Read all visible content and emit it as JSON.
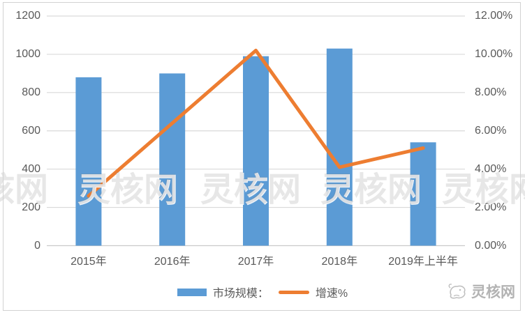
{
  "chart_data": {
    "type": "bar",
    "subtype": "combo-bar-line-dual-axis",
    "title": "",
    "categories": [
      "2015年",
      "2016年",
      "2017年",
      "2018年",
      "2019年上半年"
    ],
    "series": [
      {
        "name": "市场规模：",
        "type": "bar",
        "axis": "left",
        "color": "#5B9BD5",
        "values": [
          880,
          900,
          990,
          1030,
          540
        ]
      },
      {
        "name": "增速%",
        "type": "line",
        "axis": "right",
        "color": "#ED7D31",
        "unit": "%",
        "values": [
          2.6,
          6.4,
          10.2,
          4.1,
          5.1
        ]
      }
    ],
    "left_axis": {
      "min": 0,
      "max": 1200,
      "step": 200,
      "tick_labels": [
        "0",
        "200",
        "400",
        "600",
        "800",
        "1000",
        "1200"
      ]
    },
    "right_axis": {
      "min": 0,
      "max": 12,
      "step": 2,
      "tick_labels": [
        "0.00%",
        "2.00%",
        "4.00%",
        "6.00%",
        "8.00%",
        "10.00%",
        "12.00%"
      ]
    },
    "grid": true,
    "legend_position": "bottom-center"
  },
  "watermark": {
    "text": "灵核网"
  },
  "logo": {
    "text": "灵核网"
  },
  "colors": {
    "bar": "#5B9BD5",
    "line": "#ED7D31",
    "grid": "#D9D9D9",
    "axis_line": "#C9C9C9",
    "axis_text": "#595959",
    "watermark_text": "#9e9e9e",
    "logo_text": "#b3b3b3",
    "border": "#d2d2d2"
  }
}
